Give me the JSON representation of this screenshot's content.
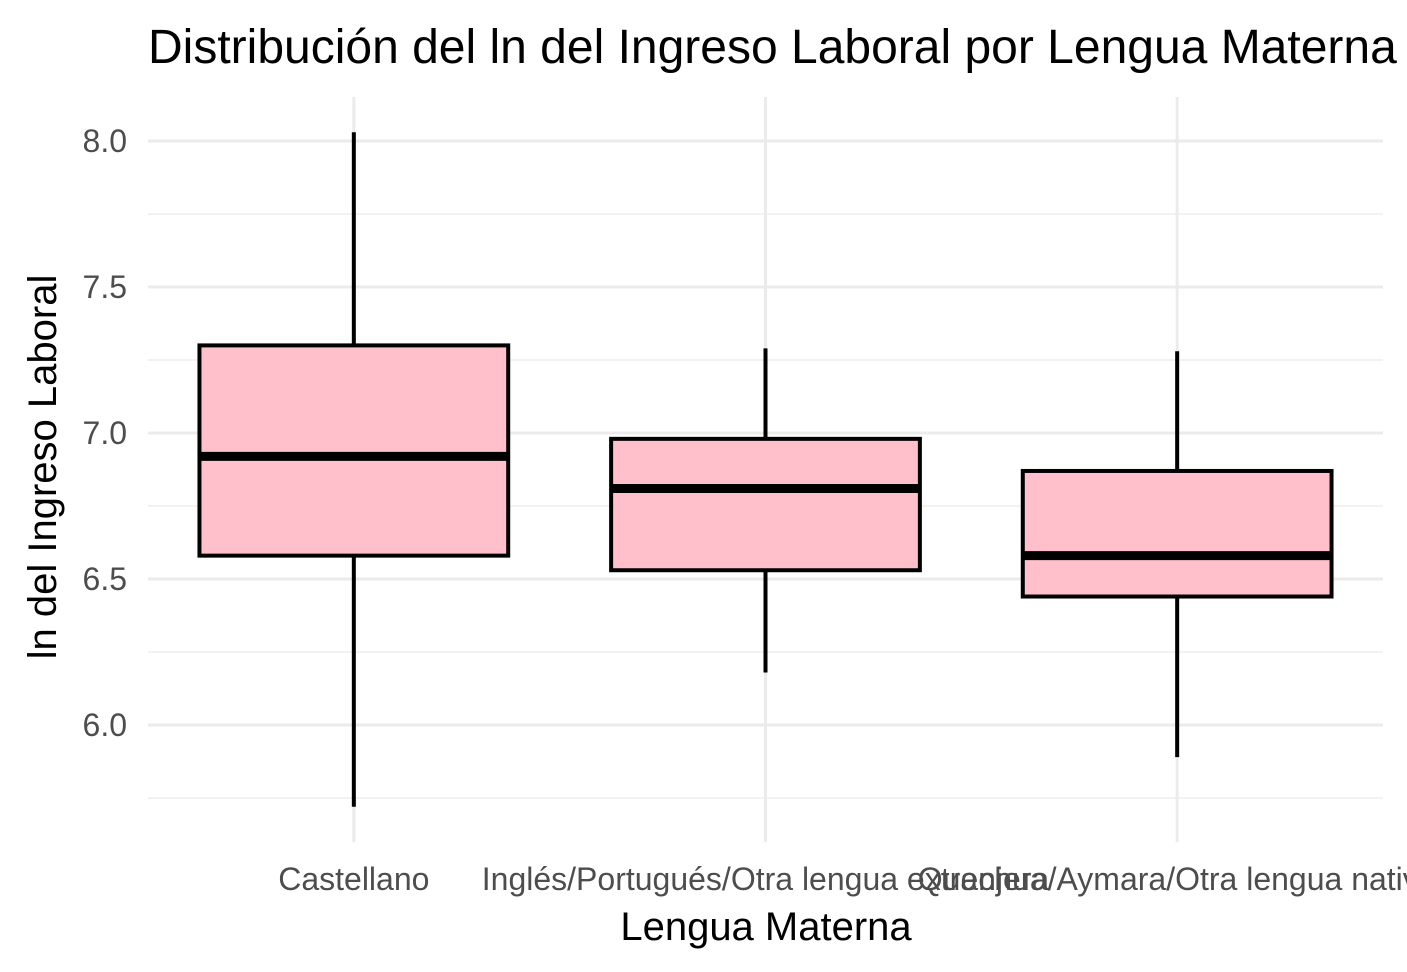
{
  "chart_data": {
    "type": "boxplot",
    "title": "Distribución del ln del Ingreso Laboral por Lengua Materna",
    "xlabel": "Lengua Materna",
    "ylabel": "ln del Ingreso Laboral",
    "ylim": [
      5.78,
      8.15
    ],
    "yticks": [
      6.0,
      6.5,
      7.0,
      7.5,
      8.0
    ],
    "ytick_labels": [
      "6.0",
      "6.5",
      "7.0",
      "7.5",
      "8.0"
    ],
    "yminor": [
      5.75,
      6.25,
      6.75,
      7.25,
      7.75
    ],
    "grid": true,
    "box_fill": "#ffc0cb",
    "categories": [
      "Castellano",
      "Inglés/Portugués/Otra lengua extranjera",
      "Quechua/Aymara/Otra lengua nativa"
    ],
    "boxes": [
      {
        "min": 5.72,
        "q1": 6.58,
        "median": 6.92,
        "q3": 7.3,
        "max": 8.03
      },
      {
        "min": 6.18,
        "q1": 6.53,
        "median": 6.81,
        "q3": 6.98,
        "max": 7.29
      },
      {
        "min": 5.89,
        "q1": 6.44,
        "median": 6.58,
        "q3": 6.87,
        "max": 7.28
      }
    ]
  }
}
